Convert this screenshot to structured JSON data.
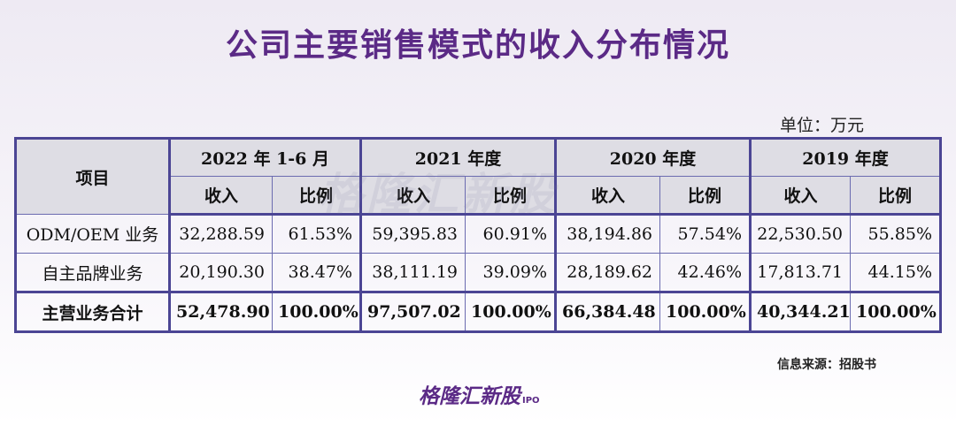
{
  "title": "公司主要销售模式的收入分布情况",
  "unit": "单位：万元",
  "table": {
    "item_header": "项目",
    "periods": [
      "2022 年 1-6 月",
      "2021 年度",
      "2020 年度",
      "2019 年度"
    ],
    "sub_headers": [
      "收入",
      "比例"
    ],
    "rows": [
      {
        "label": "ODM/OEM 业务",
        "values": [
          "32,288.59",
          "61.53%",
          "59,395.83",
          "60.91%",
          "38,194.86",
          "57.54%",
          "22,530.50",
          "55.85%"
        ]
      },
      {
        "label": "自主品牌业务",
        "values": [
          "20,190.30",
          "38.47%",
          "38,111.19",
          "39.09%",
          "28,189.62",
          "42.46%",
          "17,813.71",
          "44.15%"
        ]
      },
      {
        "label": "主营业务合计",
        "values": [
          "52,478.90",
          "100.00%",
          "97,507.02",
          "100.00%",
          "66,384.48",
          "100.00%",
          "40,344.21",
          "100.00%"
        ]
      }
    ]
  },
  "watermark": "格隆汇新股",
  "source": "信息来源：招股书",
  "logo": {
    "text": "格隆汇新股",
    "suffix": "IPO"
  }
}
